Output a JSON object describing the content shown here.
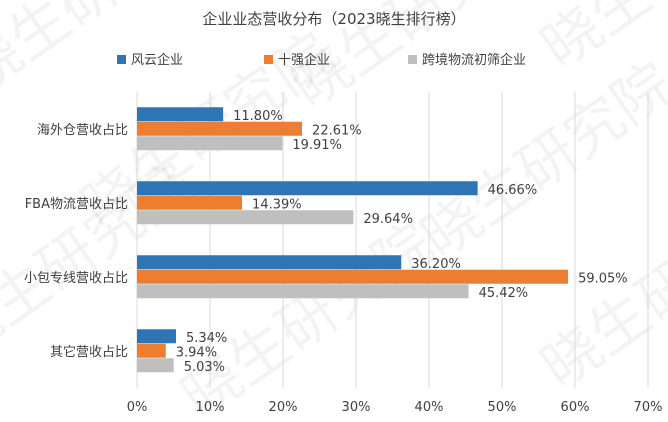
{
  "chart_data": {
    "type": "bar",
    "orientation": "horizontal",
    "title": "企业业态营收分布（2023晓生排行榜）",
    "categories": [
      "海外仓营收占比",
      "FBA物流营收占比",
      "小包专线营收占比",
      "其它营收占比"
    ],
    "series": [
      {
        "name": "风云企业",
        "color": "#2E75B6",
        "values": [
          11.8,
          46.66,
          36.2,
          5.34
        ],
        "labels": [
          "11.80%",
          "46.66%",
          "36.20%",
          "5.34%"
        ]
      },
      {
        "name": "十强企业",
        "color": "#ED7D31",
        "values": [
          22.61,
          14.39,
          59.05,
          3.94
        ],
        "labels": [
          "22.61%",
          "14.39%",
          "59.05%",
          "3.94%"
        ]
      },
      {
        "name": "跨境物流初筛企业",
        "color": "#BFBFBF",
        "values": [
          19.91,
          29.64,
          45.42,
          5.03
        ],
        "labels": [
          "19.91%",
          "29.64%",
          "45.42%",
          "5.03%"
        ]
      }
    ],
    "xlim": [
      0,
      70
    ],
    "xticks": [
      "0%",
      "10%",
      "20%",
      "30%",
      "40%",
      "50%",
      "60%",
      "70%"
    ],
    "grid": true,
    "legend": "top"
  },
  "watermark": "晓生研究院"
}
